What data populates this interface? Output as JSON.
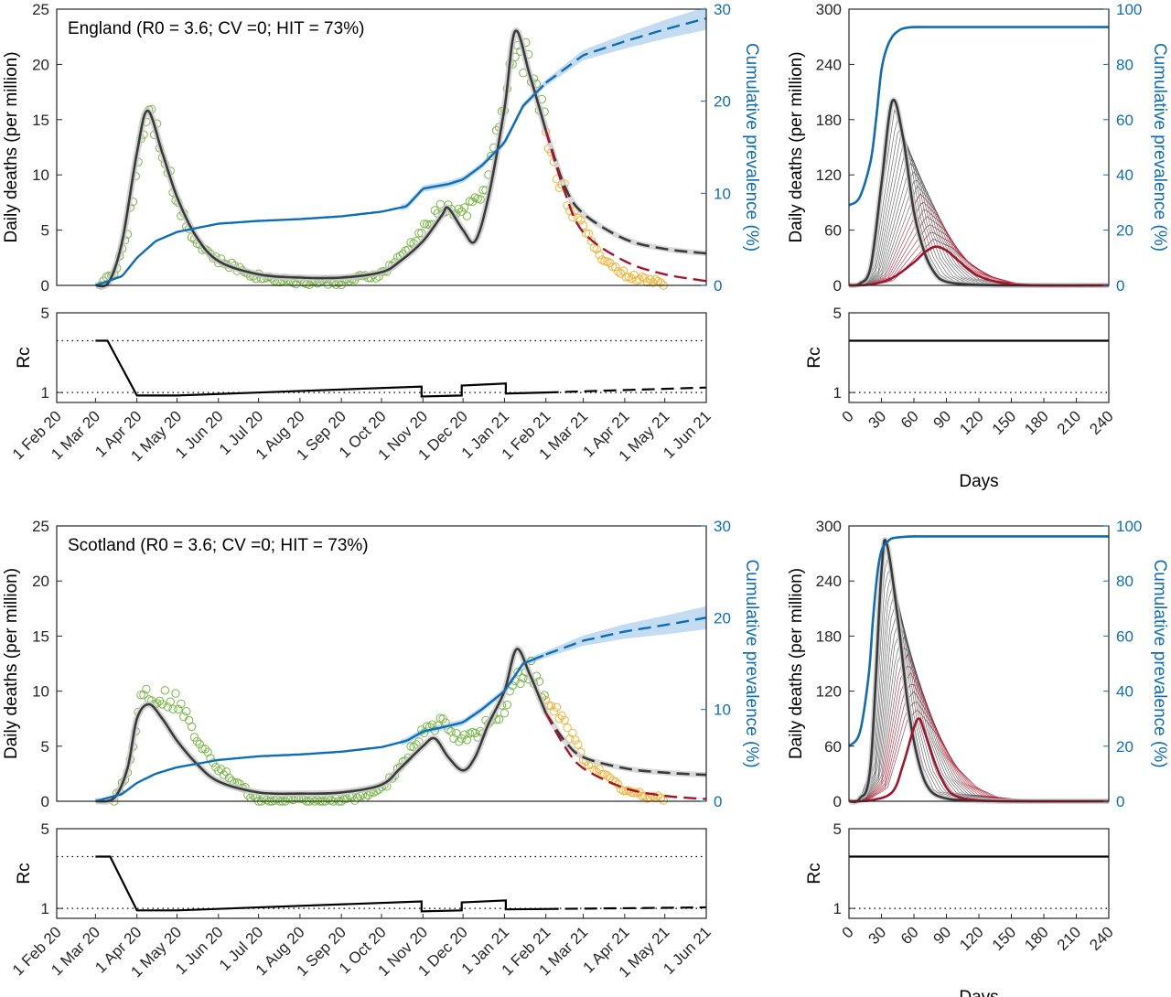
{
  "chart_data": [
    {
      "type": "line",
      "panel": "england-main",
      "title": "England (R0 = 3.6; CV =0; HIT = 73%)",
      "ylabel": "Daily deaths (per million)",
      "y2label": "Cumulative prevalence (%)",
      "ylim": [
        0,
        25
      ],
      "yticks": [
        0,
        5,
        10,
        15,
        20,
        25
      ],
      "y2lim": [
        0,
        30
      ],
      "y2ticks": [
        0,
        10,
        20,
        30
      ],
      "x_axis": "date",
      "xlim": [
        "2020-02-01",
        "2021-06-01"
      ],
      "colors": {
        "model": "#3a3a3a",
        "fitted_data": "#7ab648",
        "validation_data": "#f2b234",
        "counterfactual": "#a1162e",
        "prevalence": "#0f6db4",
        "band": "#b9d6ee"
      },
      "series": [
        {
          "role": "model-deaths",
          "x": [
            "2020-03-01",
            "2020-03-11",
            "2020-03-21",
            "2020-04-01",
            "2020-04-09",
            "2020-04-20",
            "2020-05-01",
            "2020-05-15",
            "2020-06-01",
            "2020-07-01",
            "2020-08-01",
            "2020-09-01",
            "2020-10-01",
            "2020-10-15",
            "2020-11-01",
            "2020-11-15",
            "2020-11-20",
            "2020-12-01",
            "2020-12-10",
            "2020-12-20",
            "2021-01-01",
            "2021-01-09",
            "2021-01-20",
            "2021-02-01",
            "2021-02-15",
            "2021-03-01",
            "2021-04-01",
            "2021-05-01",
            "2021-06-01"
          ],
          "values": [
            0,
            0.3,
            4,
            12,
            15.8,
            12,
            8,
            4.5,
            2.2,
            1.0,
            0.7,
            0.7,
            1.2,
            2.2,
            4,
            6.3,
            7,
            5,
            4,
            8,
            16,
            23,
            19,
            14,
            9,
            6.5,
            4.2,
            3.3,
            2.9
          ]
        },
        {
          "role": "counterfactual-deaths",
          "x": [
            "2021-02-01",
            "2021-02-15",
            "2021-03-01",
            "2021-04-01",
            "2021-05-01",
            "2021-06-01"
          ],
          "values": [
            14,
            8.5,
            4.8,
            2.2,
            1,
            0.4
          ]
        },
        {
          "role": "observed-deaths-fitted",
          "x": [
            "2020-03-05",
            "2020-03-15",
            "2020-03-25",
            "2020-04-05",
            "2020-04-10",
            "2020-04-20",
            "2020-05-01",
            "2020-05-15",
            "2020-06-01",
            "2020-07-01",
            "2020-08-01",
            "2020-09-01",
            "2020-10-01",
            "2020-10-15",
            "2020-11-01",
            "2020-11-15",
            "2020-12-01",
            "2020-12-15",
            "2021-01-01",
            "2021-01-10",
            "2021-01-20",
            "2021-01-31"
          ],
          "values": [
            0.2,
            1,
            5,
            14,
            16.5,
            12.5,
            7.5,
            4,
            2.2,
            0.8,
            0.3,
            0.3,
            1.0,
            2.5,
            5,
            7,
            6.5,
            8,
            16,
            22,
            20,
            15
          ]
        },
        {
          "role": "observed-deaths-validation",
          "x": [
            "2021-02-01",
            "2021-02-10",
            "2021-02-20",
            "2021-03-01",
            "2021-03-15",
            "2021-04-01",
            "2021-04-15",
            "2021-05-01"
          ],
          "values": [
            14,
            10,
            7,
            5,
            2.5,
            1.0,
            0.5,
            0.2
          ]
        },
        {
          "role": "cumulative-prevalence",
          "x": [
            "2020-03-01",
            "2020-03-21",
            "2020-04-01",
            "2020-04-15",
            "2020-05-01",
            "2020-06-01",
            "2020-07-01",
            "2020-08-01",
            "2020-09-01",
            "2020-10-01",
            "2020-10-20",
            "2020-11-01",
            "2020-11-20",
            "2020-12-01",
            "2020-12-15",
            "2021-01-01",
            "2021-01-15",
            "2021-02-01",
            "2021-03-01",
            "2021-04-01",
            "2021-05-01",
            "2021-06-01"
          ],
          "values": [
            0,
            1,
            3,
            4.8,
            5.8,
            6.7,
            7.0,
            7.2,
            7.5,
            8.0,
            8.6,
            10.5,
            11,
            11.5,
            13,
            15.5,
            19.5,
            22,
            25,
            26.5,
            27.8,
            29
          ]
        }
      ],
      "x_tick_labels": [
        "1 Feb 20",
        "1 Mar 20",
        "1 Apr 20",
        "1 May 20",
        "1 Jun 20",
        "1 Jul 20",
        "1 Aug 20",
        "1 Sep 20",
        "1 Oct 20",
        "1 Nov 20",
        "1 Dec 20",
        "1 Jan 21",
        "1 Feb 21",
        "1 Mar 21",
        "1 Apr 21",
        "1 May 21",
        "1 Jun 21"
      ]
    },
    {
      "type": "line",
      "panel": "england-rc",
      "ylabel": "Rc",
      "ylim": [
        0.5,
        5
      ],
      "yticks": [
        1,
        5
      ],
      "reference_lines": [
        1,
        3.6
      ],
      "x_axis": "date",
      "xlim": [
        "2020-02-01",
        "2021-06-01"
      ],
      "series": [
        {
          "role": "rc-fitted",
          "x": [
            "2020-03-01",
            "2020-03-10",
            "2020-04-01",
            "2020-05-01",
            "2020-10-31",
            "2020-10-31",
            "2020-11-30",
            "2020-11-30",
            "2021-01-02",
            "2021-01-02",
            "2021-02-01"
          ],
          "values": [
            3.6,
            3.6,
            0.85,
            0.85,
            1.3,
            0.8,
            0.85,
            1.35,
            1.45,
            0.95,
            1.0
          ]
        },
        {
          "role": "rc-projection",
          "x": [
            "2021-02-01",
            "2021-06-01"
          ],
          "values": [
            1.0,
            1.25
          ]
        }
      ]
    },
    {
      "type": "line",
      "panel": "england-counterfactual",
      "ylabel": "Daily deaths (per million)",
      "y2label": "Cumulative prevalence (%)",
      "ylim": [
        0,
        300
      ],
      "yticks": [
        0,
        60,
        120,
        180,
        240,
        300
      ],
      "y2lim": [
        0,
        100
      ],
      "y2ticks": [
        0,
        20,
        40,
        60,
        80,
        100
      ],
      "xlabel": "Days",
      "xlim": [
        0,
        240
      ],
      "xticks": [
        0,
        30,
        60,
        90,
        120,
        150,
        180,
        210,
        240
      ],
      "series": [
        {
          "role": "unmitigated-deaths",
          "x": [
            0,
            10,
            20,
            30,
            40,
            50,
            60,
            70,
            80,
            90,
            110,
            150,
            240
          ],
          "values": [
            0,
            2,
            20,
            110,
            200,
            160,
            80,
            35,
            12,
            4,
            1,
            0,
            0
          ]
        },
        {
          "role": "mitigated-deaths",
          "x": [
            0,
            20,
            40,
            60,
            70,
            80,
            90,
            100,
            110,
            120,
            140,
            170,
            240
          ],
          "values": [
            0,
            1,
            8,
            25,
            36,
            42,
            38,
            28,
            18,
            10,
            3,
            0,
            0
          ]
        },
        {
          "role": "cumulative-prevalence",
          "x": [
            0,
            10,
            20,
            25,
            30,
            35,
            40,
            45,
            50,
            60,
            80,
            240
          ],
          "values": [
            29,
            32,
            45,
            60,
            78,
            86,
            90,
            92,
            93,
            93.5,
            93.5,
            93.5
          ]
        }
      ]
    },
    {
      "type": "line",
      "panel": "england-counterfactual-rc",
      "ylabel": "Rc",
      "ylim": [
        0.5,
        5
      ],
      "yticks": [
        1,
        5
      ],
      "xlabel": "Days",
      "xlim": [
        0,
        240
      ],
      "series": [
        {
          "role": "rc",
          "x": [
            0,
            240
          ],
          "values": [
            3.6,
            3.6
          ]
        }
      ]
    },
    {
      "type": "line",
      "panel": "scotland-main",
      "title": "Scotland (R0 = 3.6; CV =0; HIT = 73%)",
      "ylabel": "Daily deaths (per million)",
      "y2label": "Cumulative prevalence (%)",
      "ylim": [
        0,
        25
      ],
      "yticks": [
        0,
        5,
        10,
        15,
        20,
        25
      ],
      "y2lim": [
        0,
        30
      ],
      "y2ticks": [
        0,
        10,
        20,
        30
      ],
      "x_axis": "date",
      "xlim": [
        "2020-02-01",
        "2021-06-01"
      ],
      "series": [
        {
          "role": "model-deaths",
          "x": [
            "2020-03-01",
            "2020-03-15",
            "2020-03-25",
            "2020-04-01",
            "2020-04-10",
            "2020-04-20",
            "2020-05-01",
            "2020-05-15",
            "2020-06-01",
            "2020-07-01",
            "2020-08-01",
            "2020-09-01",
            "2020-10-01",
            "2020-10-15",
            "2020-11-01",
            "2020-11-10",
            "2020-11-20",
            "2020-12-01",
            "2020-12-10",
            "2020-12-20",
            "2021-01-01",
            "2021-01-10",
            "2021-01-20",
            "2021-02-01",
            "2021-02-15",
            "2021-03-01",
            "2021-04-01",
            "2021-05-01",
            "2021-06-01"
          ],
          "values": [
            0,
            0.3,
            3,
            7.5,
            8.8,
            7.5,
            5.5,
            3.5,
            1.8,
            0.8,
            0.7,
            0.8,
            1.5,
            3,
            5,
            5.7,
            4,
            2.8,
            4,
            7,
            10,
            13.8,
            11.5,
            8,
            5.5,
            4,
            3,
            2.6,
            2.4
          ]
        },
        {
          "role": "counterfactual-deaths",
          "x": [
            "2021-02-01",
            "2021-02-15",
            "2021-03-01",
            "2021-04-01",
            "2021-05-01",
            "2021-06-01"
          ],
          "values": [
            8,
            5,
            3,
            1.2,
            0.5,
            0.2
          ]
        },
        {
          "role": "observed-deaths-fitted",
          "x": [
            "2020-03-15",
            "2020-03-25",
            "2020-04-05",
            "2020-04-15",
            "2020-05-01",
            "2020-05-15",
            "2020-06-01",
            "2020-07-01",
            "2020-08-01",
            "2020-09-01",
            "2020-10-01",
            "2020-10-15",
            "2020-11-01",
            "2020-11-15",
            "2020-12-01",
            "2020-12-15",
            "2021-01-01",
            "2021-01-10",
            "2021-01-20",
            "2021-01-31"
          ],
          "values": [
            0.2,
            2.5,
            10,
            9.5,
            9,
            6,
            3,
            0,
            0,
            0,
            1,
            3,
            6.5,
            7,
            5.5,
            6.5,
            8.5,
            11,
            12,
            9
          ]
        },
        {
          "role": "observed-deaths-validation",
          "x": [
            "2021-02-01",
            "2021-02-10",
            "2021-02-20",
            "2021-03-01",
            "2021-03-15",
            "2021-04-01",
            "2021-04-15",
            "2021-05-01"
          ],
          "values": [
            9,
            8,
            6,
            4,
            2.5,
            1,
            0.5,
            0.3
          ]
        },
        {
          "role": "cumulative-prevalence",
          "x": [
            "2020-03-01",
            "2020-03-21",
            "2020-04-01",
            "2020-04-15",
            "2020-05-01",
            "2020-06-01",
            "2020-07-01",
            "2020-08-01",
            "2020-09-01",
            "2020-10-01",
            "2020-10-20",
            "2020-11-01",
            "2020-11-20",
            "2020-12-01",
            "2020-12-15",
            "2021-01-01",
            "2021-01-15",
            "2021-02-01",
            "2021-03-01",
            "2021-04-01",
            "2021-05-01",
            "2021-06-01"
          ],
          "values": [
            0,
            0.8,
            2,
            3,
            3.7,
            4.5,
            4.9,
            5.1,
            5.4,
            5.9,
            6.6,
            7.6,
            8.2,
            8.6,
            10,
            12,
            15,
            16,
            17.5,
            18.5,
            19.2,
            20
          ]
        }
      ],
      "x_tick_labels": [
        "1 Feb 20",
        "1 Mar 20",
        "1 Apr 20",
        "1 May 20",
        "1 Jun 20",
        "1 Jul 20",
        "1 Aug 20",
        "1 Sep 20",
        "1 Oct 20",
        "1 Nov 20",
        "1 Dec 20",
        "1 Jan 21",
        "1 Feb 21",
        "1 Mar 21",
        "1 Apr 21",
        "1 May 21",
        "1 Jun 21"
      ]
    },
    {
      "type": "line",
      "panel": "scotland-rc",
      "ylabel": "Rc",
      "ylim": [
        0.5,
        5
      ],
      "yticks": [
        1,
        5
      ],
      "reference_lines": [
        1,
        3.6
      ],
      "x_axis": "date",
      "xlim": [
        "2020-02-01",
        "2021-06-01"
      ],
      "series": [
        {
          "role": "rc-fitted",
          "x": [
            "2020-03-01",
            "2020-03-12",
            "2020-04-01",
            "2020-05-01",
            "2020-10-31",
            "2020-10-31",
            "2020-11-30",
            "2020-11-30",
            "2021-01-02",
            "2021-01-02",
            "2021-02-01"
          ],
          "values": [
            3.6,
            3.6,
            0.9,
            0.9,
            1.35,
            0.85,
            0.9,
            1.3,
            1.4,
            0.95,
            0.97
          ]
        },
        {
          "role": "rc-projection",
          "x": [
            "2021-02-01",
            "2021-06-01"
          ],
          "values": [
            0.97,
            1.05
          ]
        }
      ]
    },
    {
      "type": "line",
      "panel": "scotland-counterfactual",
      "ylabel": "Daily deaths (per million)",
      "y2label": "Cumulative prevalence (%)",
      "ylim": [
        0,
        300
      ],
      "yticks": [
        0,
        60,
        120,
        180,
        240,
        300
      ],
      "y2lim": [
        0,
        100
      ],
      "y2ticks": [
        0,
        20,
        40,
        60,
        80,
        100
      ],
      "xlabel": "Days",
      "xlim": [
        0,
        240
      ],
      "xticks": [
        0,
        30,
        60,
        90,
        120,
        150,
        180,
        210,
        240
      ],
      "series": [
        {
          "role": "unmitigated-deaths",
          "x": [
            0,
            10,
            20,
            30,
            35,
            45,
            55,
            65,
            75,
            90,
            110,
            150,
            240
          ],
          "values": [
            0,
            3,
            40,
            250,
            280,
            200,
            100,
            40,
            12,
            3,
            1,
            0,
            0
          ]
        },
        {
          "role": "mitigated-deaths",
          "x": [
            0,
            20,
            40,
            50,
            60,
            65,
            70,
            80,
            90,
            100,
            120,
            150,
            240
          ],
          "values": [
            0,
            1,
            10,
            40,
            80,
            90,
            75,
            40,
            15,
            5,
            1,
            0,
            0
          ]
        },
        {
          "role": "cumulative-prevalence",
          "x": [
            0,
            10,
            18,
            22,
            26,
            30,
            35,
            40,
            50,
            60,
            80,
            240
          ],
          "values": [
            20,
            25,
            45,
            65,
            82,
            91,
            94,
            95.5,
            96,
            96.2,
            96.2,
            96.2
          ]
        }
      ]
    },
    {
      "type": "line",
      "panel": "scotland-counterfactual-rc",
      "ylabel": "Rc",
      "ylim": [
        0.5,
        5
      ],
      "yticks": [
        1,
        5
      ],
      "xlabel": "Days",
      "xlim": [
        0,
        240
      ],
      "series": [
        {
          "role": "rc",
          "x": [
            0,
            240
          ],
          "values": [
            3.6,
            3.6
          ]
        }
      ]
    }
  ]
}
